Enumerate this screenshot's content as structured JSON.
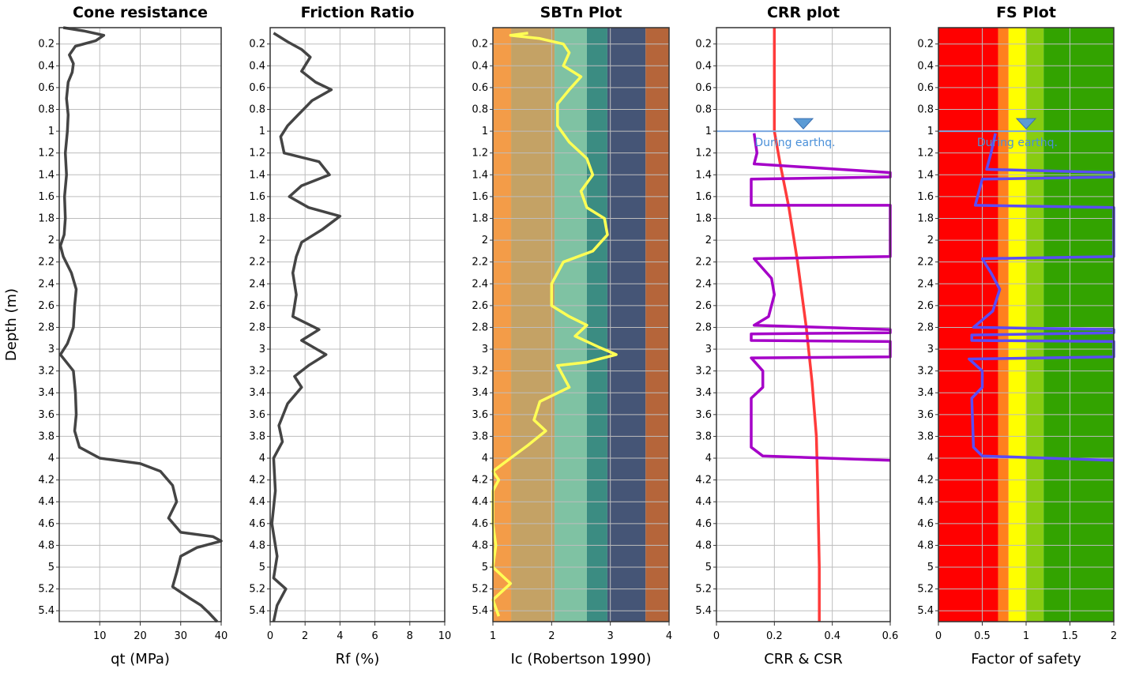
{
  "y_axis_label": "Depth (m)",
  "chart_data": [
    {
      "type": "line",
      "title": "Cone resistance",
      "xlabel": "qt (MPa)",
      "xlim": [
        0,
        40
      ],
      "ylim": [
        0.05,
        5.5
      ],
      "x_ticks": [
        "10",
        "20",
        "30",
        "40"
      ],
      "y_ticks": [
        "0.2",
        "0.4",
        "0.6",
        "0.8",
        "1",
        "1.2",
        "1.4",
        "1.6",
        "1.8",
        "2",
        "2.2",
        "2.4",
        "2.6",
        "2.8",
        "3",
        "3.2",
        "3.4",
        "3.6",
        "3.8",
        "4",
        "4.2",
        "4.4",
        "4.6",
        "4.8",
        "5",
        "5.2",
        "5.4"
      ],
      "series": [
        {
          "color": "#444444",
          "points": [
            [
              1,
              0.05
            ],
            [
              6,
              0.08
            ],
            [
              11,
              0.12
            ],
            [
              9,
              0.17
            ],
            [
              4,
              0.22
            ],
            [
              2.5,
              0.3
            ],
            [
              3.5,
              0.38
            ],
            [
              3.2,
              0.46
            ],
            [
              2.2,
              0.55
            ],
            [
              1.8,
              0.7
            ],
            [
              2.2,
              0.85
            ],
            [
              2,
              1
            ],
            [
              1.5,
              1.2
            ],
            [
              1.8,
              1.4
            ],
            [
              1.3,
              1.6
            ],
            [
              1.5,
              1.8
            ],
            [
              1.2,
              1.95
            ],
            [
              0.3,
              2.05
            ],
            [
              1,
              2.15
            ],
            [
              3,
              2.3
            ],
            [
              4.2,
              2.45
            ],
            [
              3.8,
              2.6
            ],
            [
              3.5,
              2.8
            ],
            [
              2,
              2.95
            ],
            [
              0.3,
              3.05
            ],
            [
              3.5,
              3.2
            ],
            [
              4,
              3.4
            ],
            [
              4.2,
              3.6
            ],
            [
              3.8,
              3.75
            ],
            [
              5,
              3.9
            ],
            [
              10,
              4
            ],
            [
              20,
              4.05
            ],
            [
              25,
              4.12
            ],
            [
              28,
              4.25
            ],
            [
              29,
              4.4
            ],
            [
              27,
              4.55
            ],
            [
              30,
              4.68
            ],
            [
              38,
              4.72
            ],
            [
              40,
              4.76
            ],
            [
              34,
              4.82
            ],
            [
              30,
              4.9
            ],
            [
              29,
              5.05
            ],
            [
              28,
              5.18
            ],
            [
              32,
              5.28
            ],
            [
              35,
              5.35
            ],
            [
              37,
              5.42
            ],
            [
              39,
              5.5
            ]
          ]
        }
      ]
    },
    {
      "type": "line",
      "title": "Friction Ratio",
      "xlabel": "Rf (%)",
      "xlim": [
        0,
        10
      ],
      "ylim": [
        0.05,
        5.5
      ],
      "x_ticks": [
        "0",
        "2",
        "4",
        "6",
        "8",
        "10"
      ],
      "y_ticks": [
        "0.2",
        "0.4",
        "0.6",
        "0.8",
        "1",
        "1.2",
        "1.4",
        "1.6",
        "1.8",
        "2",
        "2.2",
        "2.4",
        "2.6",
        "2.8",
        "3",
        "3.2",
        "3.4",
        "3.6",
        "3.8",
        "4",
        "4.2",
        "4.4",
        "4.6",
        "4.8",
        "5",
        "5.2",
        "5.4"
      ],
      "series": [
        {
          "color": "#444444",
          "points": [
            [
              0.2,
              0.1
            ],
            [
              1,
              0.18
            ],
            [
              1.8,
              0.25
            ],
            [
              2.3,
              0.32
            ],
            [
              1.8,
              0.45
            ],
            [
              2.6,
              0.55
            ],
            [
              3.5,
              0.62
            ],
            [
              2.4,
              0.72
            ],
            [
              1.6,
              0.85
            ],
            [
              1,
              0.95
            ],
            [
              0.6,
              1.05
            ],
            [
              0.8,
              1.2
            ],
            [
              2.8,
              1.28
            ],
            [
              3.4,
              1.4
            ],
            [
              1.8,
              1.5
            ],
            [
              1.1,
              1.6
            ],
            [
              2.2,
              1.7
            ],
            [
              4,
              1.78
            ],
            [
              3,
              1.9
            ],
            [
              1.8,
              2.02
            ],
            [
              1.5,
              2.15
            ],
            [
              1.3,
              2.3
            ],
            [
              1.5,
              2.5
            ],
            [
              1.3,
              2.7
            ],
            [
              2.8,
              2.82
            ],
            [
              1.8,
              2.92
            ],
            [
              3.2,
              3.05
            ],
            [
              2.2,
              3.15
            ],
            [
              1.4,
              3.25
            ],
            [
              1.8,
              3.35
            ],
            [
              1,
              3.5
            ],
            [
              0.5,
              3.7
            ],
            [
              0.7,
              3.85
            ],
            [
              0.2,
              4
            ],
            [
              0.3,
              4.3
            ],
            [
              0.1,
              4.6
            ],
            [
              0.4,
              4.9
            ],
            [
              0.2,
              5.1
            ],
            [
              0.9,
              5.2
            ],
            [
              0.4,
              5.35
            ],
            [
              0.2,
              5.5
            ]
          ]
        }
      ]
    },
    {
      "type": "line",
      "title": "SBTn Plot",
      "xlabel": "Ic (Robertson 1990)",
      "xlim": [
        1,
        4
      ],
      "ylim": [
        0.05,
        5.5
      ],
      "x_ticks": [
        "1",
        "2",
        "3",
        "4"
      ],
      "y_ticks": [
        "0.2",
        "0.4",
        "0.6",
        "0.8",
        "1",
        "1.2",
        "1.4",
        "1.6",
        "1.8",
        "2",
        "2.2",
        "2.4",
        "2.6",
        "2.8",
        "3",
        "3.2",
        "3.4",
        "3.6",
        "3.8",
        "4",
        "4.2",
        "4.4",
        "4.6",
        "4.8",
        "5",
        "5.2",
        "5.4"
      ],
      "bands": [
        {
          "from": 1,
          "to": 1.31,
          "color": "#f39c48"
        },
        {
          "from": 1.31,
          "to": 2.05,
          "color": "#c4a265"
        },
        {
          "from": 2.05,
          "to": 2.6,
          "color": "#7fc2a3"
        },
        {
          "from": 2.6,
          "to": 2.95,
          "color": "#3b8c82"
        },
        {
          "from": 2.95,
          "to": 3.6,
          "color": "#455576"
        },
        {
          "from": 3.6,
          "to": 4,
          "color": "#b5653a"
        }
      ],
      "series": [
        {
          "color": "#ffff55",
          "points": [
            [
              1.6,
              0.1
            ],
            [
              1.3,
              0.12
            ],
            [
              1.8,
              0.15
            ],
            [
              2.2,
              0.2
            ],
            [
              2.3,
              0.28
            ],
            [
              2.2,
              0.4
            ],
            [
              2.5,
              0.5
            ],
            [
              2.3,
              0.62
            ],
            [
              2.1,
              0.75
            ],
            [
              2.1,
              0.95
            ],
            [
              2.3,
              1.1
            ],
            [
              2.6,
              1.25
            ],
            [
              2.7,
              1.4
            ],
            [
              2.5,
              1.55
            ],
            [
              2.6,
              1.7
            ],
            [
              2.9,
              1.8
            ],
            [
              2.95,
              1.95
            ],
            [
              2.7,
              2.1
            ],
            [
              2.2,
              2.2
            ],
            [
              2.0,
              2.4
            ],
            [
              2.0,
              2.6
            ],
            [
              2.3,
              2.7
            ],
            [
              2.6,
              2.78
            ],
            [
              2.4,
              2.88
            ],
            [
              2.8,
              2.98
            ],
            [
              3.1,
              3.05
            ],
            [
              2.6,
              3.12
            ],
            [
              2.1,
              3.15
            ],
            [
              2.2,
              3.25
            ],
            [
              2.3,
              3.35
            ],
            [
              1.8,
              3.48
            ],
            [
              1.7,
              3.65
            ],
            [
              1.9,
              3.75
            ],
            [
              1.6,
              3.88
            ],
            [
              1.3,
              4
            ],
            [
              1.0,
              4.12
            ],
            [
              1.1,
              4.2
            ],
            [
              1.0,
              4.3
            ],
            [
              1.0,
              4.6
            ],
            [
              1.05,
              4.8
            ],
            [
              1.0,
              5.0
            ],
            [
              1.3,
              5.15
            ],
            [
              1.0,
              5.3
            ],
            [
              1.1,
              5.45
            ]
          ]
        }
      ]
    },
    {
      "type": "line",
      "title": "CRR plot",
      "xlabel": "CRR & CSR",
      "xlim": [
        0,
        0.6
      ],
      "ylim": [
        0.05,
        5.5
      ],
      "x_ticks": [
        "0",
        "0.2",
        "0.4",
        "0.6"
      ],
      "y_ticks": [
        "0.2",
        "0.4",
        "0.6",
        "0.8",
        "1",
        "1.2",
        "1.4",
        "1.6",
        "1.8",
        "2",
        "2.2",
        "2.4",
        "2.6",
        "2.8",
        "3",
        "3.2",
        "3.4",
        "3.6",
        "3.8",
        "4",
        "4.2",
        "4.4",
        "4.6",
        "4.8",
        "5",
        "5.2",
        "5.4"
      ],
      "water_table": {
        "depth": 1.0,
        "label": "During earthq."
      },
      "series": [
        {
          "color": "#ff3b3b",
          "points": [
            [
              0.2,
              0.05
            ],
            [
              0.2,
              1
            ],
            [
              0.22,
              1.3
            ],
            [
              0.25,
              1.7
            ],
            [
              0.28,
              2.2
            ],
            [
              0.31,
              2.8
            ],
            [
              0.33,
              3.3
            ],
            [
              0.345,
              3.8
            ],
            [
              0.35,
              4.3
            ],
            [
              0.355,
              5
            ],
            [
              0.355,
              5.5
            ]
          ]
        },
        {
          "color": "#a500c8",
          "points": [
            [
              0.13,
              1.02
            ],
            [
              0.14,
              1.2
            ],
            [
              0.13,
              1.3
            ],
            [
              0.6,
              1.38
            ],
            [
              0.6,
              1.42
            ],
            [
              0.12,
              1.44
            ],
            [
              0.12,
              1.68
            ],
            [
              0.6,
              1.68
            ],
            [
              0.6,
              2.15
            ],
            [
              0.13,
              2.17
            ],
            [
              0.19,
              2.35
            ],
            [
              0.2,
              2.5
            ],
            [
              0.18,
              2.7
            ],
            [
              0.13,
              2.78
            ],
            [
              0.6,
              2.82
            ],
            [
              0.6,
              2.85
            ],
            [
              0.12,
              2.86
            ],
            [
              0.12,
              2.92
            ],
            [
              0.6,
              2.93
            ],
            [
              0.6,
              3.07
            ],
            [
              0.12,
              3.08
            ],
            [
              0.16,
              3.2
            ],
            [
              0.16,
              3.35
            ],
            [
              0.12,
              3.45
            ],
            [
              0.12,
              3.9
            ],
            [
              0.16,
              3.98
            ],
            [
              0.6,
              4.02
            ]
          ]
        }
      ]
    },
    {
      "type": "line",
      "title": "FS Plot",
      "xlabel": "Factor of safety",
      "xlim": [
        0,
        2
      ],
      "ylim": [
        0.05,
        5.5
      ],
      "x_ticks": [
        "0",
        "0.5",
        "1",
        "1.5",
        "2"
      ],
      "y_ticks": [
        "0.2",
        "0.4",
        "0.6",
        "0.8",
        "1",
        "1.2",
        "1.4",
        "1.6",
        "1.8",
        "2",
        "2.2",
        "2.4",
        "2.6",
        "2.8",
        "3",
        "3.2",
        "3.4",
        "3.6",
        "3.8",
        "4",
        "4.2",
        "4.4",
        "4.6",
        "4.8",
        "5",
        "5.2",
        "5.4"
      ],
      "water_table": {
        "depth": 1.0,
        "label": "During earthq."
      },
      "bands": [
        {
          "from": 0,
          "to": 0.68,
          "color": "#ff0000"
        },
        {
          "from": 0.68,
          "to": 0.8,
          "color": "#ff7f1e"
        },
        {
          "from": 0.8,
          "to": 1.0,
          "color": "#ffff00"
        },
        {
          "from": 1.0,
          "to": 1.2,
          "color": "#88cc11"
        },
        {
          "from": 1.2,
          "to": 2.0,
          "color": "#33a300"
        }
      ],
      "series": [
        {
          "color": "#5a4cf5",
          "points": [
            [
              0.65,
              1.02
            ],
            [
              0.6,
              1.2
            ],
            [
              0.55,
              1.35
            ],
            [
              2,
              1.38
            ],
            [
              2,
              1.42
            ],
            [
              0.5,
              1.44
            ],
            [
              0.42,
              1.68
            ],
            [
              2,
              1.7
            ],
            [
              2,
              2.15
            ],
            [
              0.5,
              2.17
            ],
            [
              0.6,
              2.3
            ],
            [
              0.7,
              2.45
            ],
            [
              0.62,
              2.65
            ],
            [
              0.4,
              2.8
            ],
            [
              2,
              2.82
            ],
            [
              2,
              2.85
            ],
            [
              0.38,
              2.87
            ],
            [
              0.38,
              2.92
            ],
            [
              2,
              2.93
            ],
            [
              2,
              3.07
            ],
            [
              0.35,
              3.09
            ],
            [
              0.5,
              3.2
            ],
            [
              0.5,
              3.35
            ],
            [
              0.38,
              3.45
            ],
            [
              0.4,
              3.9
            ],
            [
              0.5,
              3.98
            ],
            [
              2,
              4.02
            ]
          ]
        }
      ]
    }
  ]
}
